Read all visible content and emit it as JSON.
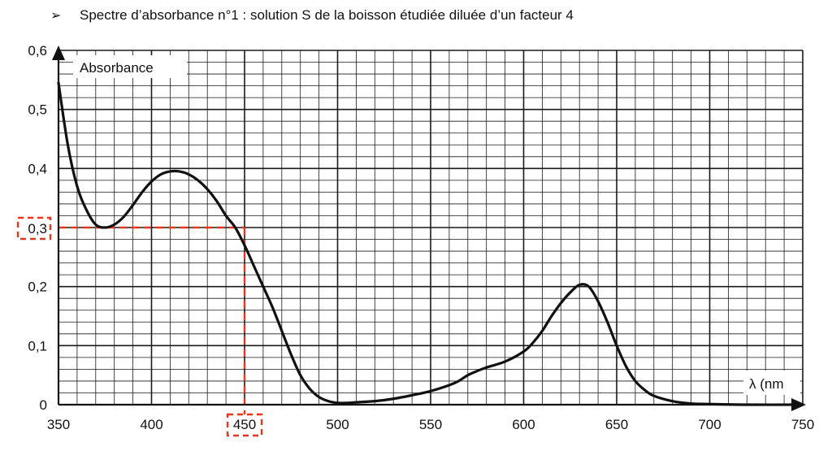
{
  "bullet": "➢",
  "title": "Spectre d’absorbance n°1 : solution S de la boisson étudiée diluée d’un facteur 4",
  "colors": {
    "curve": "#111111",
    "grid": "#1a1a1a",
    "marker": "#e8361e",
    "background": "#ffffff"
  },
  "chart_data": {
    "type": "line",
    "title": "Spectre d’absorbance n°1 : solution S de la boisson étudiée diluée d’un facteur 4",
    "ylabel": "Absorbance",
    "xlabel": "λ (nm",
    "xlim": [
      350,
      750
    ],
    "ylim": [
      0,
      0.6
    ],
    "x_ticks": [
      350,
      400,
      450,
      500,
      550,
      600,
      650,
      700,
      750
    ],
    "x_tick_labels": [
      "350",
      "400",
      "450",
      "500",
      "550",
      "600",
      "650",
      "700",
      "750"
    ],
    "y_ticks": [
      0,
      0.1,
      0.2,
      0.3,
      0.4,
      0.5,
      0.6
    ],
    "y_tick_labels": [
      "0",
      "0,1",
      "0,2",
      "0,3",
      "0,4",
      "0,5",
      "0,6"
    ],
    "grid": true,
    "series": [
      {
        "x": [
          350,
          355,
          360,
          365,
          370,
          375,
          380,
          385,
          390,
          395,
          400,
          405,
          410,
          415,
          420,
          425,
          430,
          435,
          440,
          445,
          450,
          455,
          460,
          465,
          470,
          475,
          480,
          485,
          490,
          495,
          500,
          505,
          510,
          520,
          530,
          540,
          550,
          560,
          565,
          570,
          575,
          580,
          590,
          600,
          605,
          610,
          615,
          620,
          625,
          630,
          635,
          640,
          645,
          650,
          655,
          660,
          665,
          670,
          680,
          690,
          700,
          720,
          750
        ],
        "y": [
          0.545,
          0.44,
          0.37,
          0.33,
          0.305,
          0.3,
          0.305,
          0.318,
          0.338,
          0.36,
          0.378,
          0.39,
          0.395,
          0.395,
          0.39,
          0.38,
          0.365,
          0.345,
          0.32,
          0.3,
          0.27,
          0.235,
          0.2,
          0.165,
          0.125,
          0.085,
          0.05,
          0.027,
          0.013,
          0.006,
          0.003,
          0.003,
          0.004,
          0.006,
          0.01,
          0.016,
          0.023,
          0.033,
          0.04,
          0.05,
          0.057,
          0.063,
          0.073,
          0.09,
          0.105,
          0.125,
          0.15,
          0.172,
          0.19,
          0.203,
          0.2,
          0.175,
          0.14,
          0.1,
          0.065,
          0.04,
          0.025,
          0.015,
          0.006,
          0.002,
          0.001,
          0.0,
          0.0
        ]
      }
    ],
    "highlight": {
      "x": 450,
      "y": 0.3,
      "x_label": "450",
      "y_label": "0,3"
    }
  }
}
